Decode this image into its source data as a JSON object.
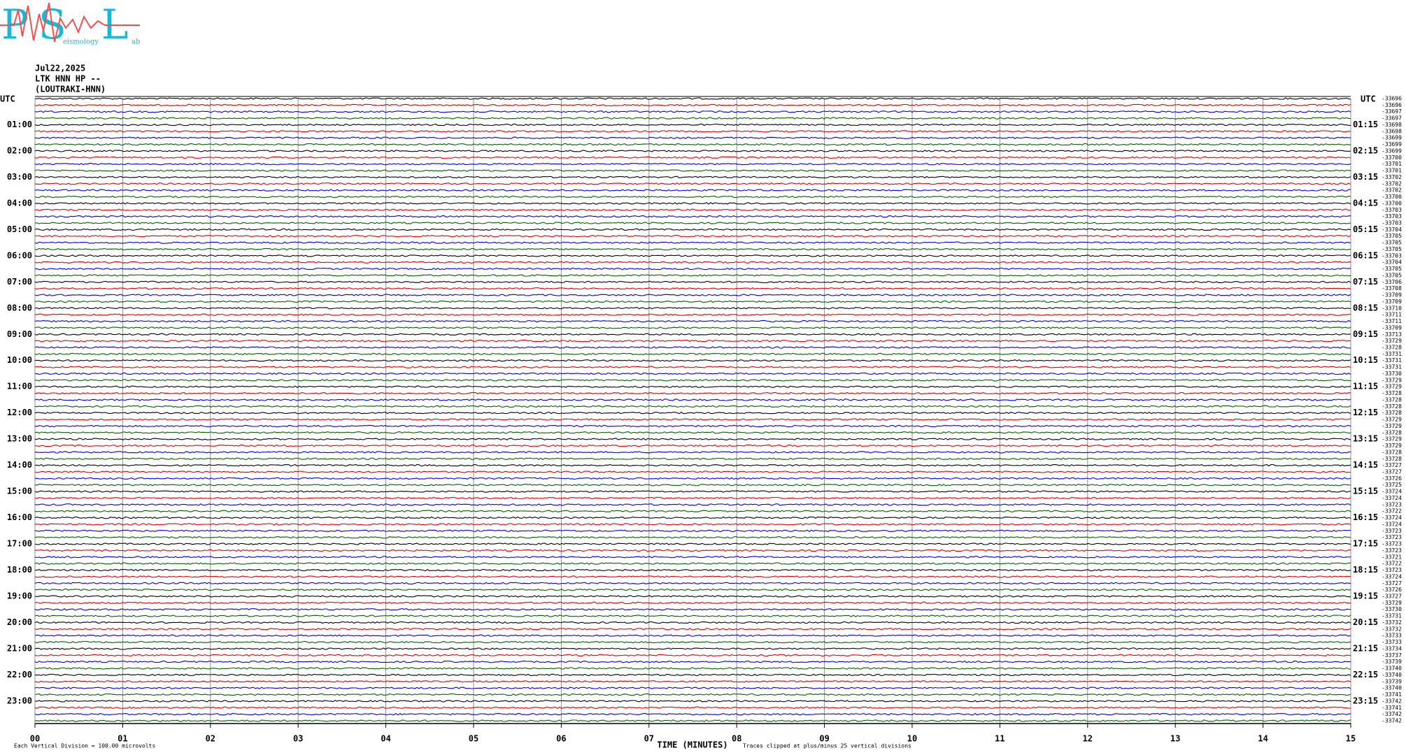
{
  "logo": {
    "letters": [
      "P",
      "S",
      "L"
    ],
    "words": [
      "eismology",
      "ab"
    ]
  },
  "chart_data": {
    "type": "helicorder",
    "header": [
      "Jul22,2025",
      "LTK HNN HP --",
      "(LOUTRAKI-HNN)"
    ],
    "left_axis_label": "UTC",
    "right_axis_label": "UTC",
    "left_hours": [
      "01:00",
      "02:00",
      "03:00",
      "04:00",
      "05:00",
      "06:00",
      "07:00",
      "08:00",
      "09:00",
      "10:00",
      "11:00",
      "12:00",
      "13:00",
      "14:00",
      "15:00",
      "16:00",
      "17:00",
      "18:00",
      "19:00",
      "20:00",
      "21:00",
      "22:00",
      "23:00"
    ],
    "right_hours": [
      "01:15",
      "02:15",
      "03:15",
      "04:15",
      "05:15",
      "06:15",
      "07:15",
      "08:15",
      "09:15",
      "10:15",
      "11:15",
      "12:15",
      "13:15",
      "14:15",
      "15:15",
      "16:15",
      "17:15",
      "18:15",
      "19:15",
      "20:15",
      "21:15",
      "22:15",
      "23:15"
    ],
    "trace_offsets": [
      -33696,
      -33696,
      -33697,
      -33697,
      -33698,
      -33698,
      -33699,
      -33699,
      -33699,
      -33700,
      -33701,
      -33701,
      -33702,
      -33702,
      -33702,
      -33700,
      -33700,
      -33703,
      -33703,
      -33703,
      -33704,
      -33705,
      -33705,
      -33705,
      -33703,
      -33704,
      -33705,
      -33705,
      -33706,
      -33708,
      -33709,
      -33709,
      -33710,
      -33711,
      -33711,
      -33709,
      -33713,
      -33729,
      -33728,
      -33731,
      -33731,
      -33731,
      -33730,
      -33729,
      -33729,
      -33728,
      -33728,
      -33728,
      -33728,
      -33729,
      -33729,
      -33728,
      -33729,
      -33729,
      -33728,
      -33728,
      -33727,
      -33727,
      -33726,
      -33725,
      -33724,
      -33724,
      -33723,
      -33722,
      -33724,
      -33724,
      -33723,
      -33723,
      -33723,
      -33723,
      -33721,
      -33722,
      -33723,
      -33724,
      -33727,
      -33726,
      -33727,
      -33729,
      -33730,
      -33731,
      -33732,
      -33732,
      -33733,
      -33733,
      -33734,
      -33737,
      -33739,
      -33740,
      -33740,
      -33739,
      -33740,
      -33741,
      -33742,
      -33741,
      -33742,
      -33742
    ],
    "trace_colors": [
      "#000000",
      "#e00000",
      "#0000e0",
      "#006000"
    ],
    "xlabel": "TIME (MINUTES)",
    "xlim": [
      0,
      15
    ],
    "xticks": [
      {
        "value": 0,
        "label": "00"
      },
      {
        "value": 1,
        "label": "01"
      },
      {
        "value": 2,
        "label": "02"
      },
      {
        "value": 3,
        "label": "03"
      },
      {
        "value": 4,
        "label": "04"
      },
      {
        "value": 5,
        "label": "05"
      },
      {
        "value": 6,
        "label": "06"
      },
      {
        "value": 7,
        "label": "07"
      },
      {
        "value": 8,
        "label": "08"
      },
      {
        "value": 9,
        "label": "09"
      },
      {
        "value": 10,
        "label": "10"
      },
      {
        "value": 11,
        "label": "11"
      },
      {
        "value": 12,
        "label": "12"
      },
      {
        "value": 13,
        "label": "13"
      },
      {
        "value": 14,
        "label": "14"
      },
      {
        "value": 15,
        "label": "15"
      }
    ],
    "grid": true,
    "scale_note": "Each Vertical Division =  100.00 microvolts",
    "clip_note": "Traces clipped at plus/minus 25 vertical divisions"
  }
}
